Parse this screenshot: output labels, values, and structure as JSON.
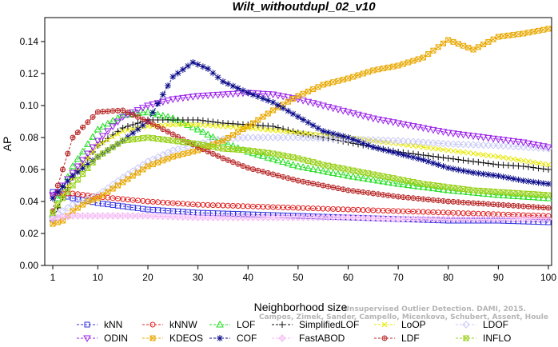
{
  "chart_data": {
    "type": "line",
    "title": "Wilt_withoutdupl_02_v10",
    "xlabel": "Neighborhood size",
    "ylabel": "AP",
    "xlim": [
      1,
      100
    ],
    "ylim": [
      0,
      0.15
    ],
    "xticks": [
      "1",
      "10",
      "20",
      "30",
      "40",
      "50",
      "60",
      "70",
      "80",
      "90",
      "100"
    ],
    "yticks": [
      "0.00",
      "0.02",
      "0.04",
      "0.06",
      "0.08",
      "0.10",
      "0.12",
      "0.14"
    ],
    "grid": false,
    "legend_position": "bottom",
    "watermark": [
      "Campos, Zimek, Sander, Campello, Micenkova, Schubert, Assent, Houle",
      "Unsupervised Outlier Detection. DAMI, 2015."
    ],
    "series": [
      {
        "name": "kNN",
        "color": "#2f2fe0",
        "marker": "square",
        "x": [
          1,
          2,
          5,
          10,
          20,
          30,
          40,
          50,
          60,
          70,
          80,
          90,
          100
        ],
        "y": [
          0.046,
          0.045,
          0.042,
          0.039,
          0.035,
          0.033,
          0.032,
          0.031,
          0.03,
          0.029,
          0.028,
          0.028,
          0.027
        ]
      },
      {
        "name": "kNNW",
        "color": "#e02020",
        "marker": "circle",
        "x": [
          1,
          2,
          5,
          10,
          20,
          30,
          40,
          50,
          60,
          70,
          80,
          90,
          100
        ],
        "y": [
          0.044,
          0.045,
          0.045,
          0.043,
          0.04,
          0.038,
          0.037,
          0.036,
          0.035,
          0.034,
          0.033,
          0.032,
          0.031
        ]
      },
      {
        "name": "LOF",
        "color": "#22dd22",
        "marker": "triangle-up",
        "x": [
          1,
          2,
          5,
          10,
          15,
          20,
          25,
          30,
          35,
          40,
          50,
          60,
          70,
          80,
          90,
          100
        ],
        "y": [
          0.032,
          0.042,
          0.062,
          0.085,
          0.094,
          0.096,
          0.092,
          0.085,
          0.077,
          0.071,
          0.062,
          0.056,
          0.051,
          0.047,
          0.044,
          0.042
        ]
      },
      {
        "name": "SimplifiedLOF",
        "color": "#111111",
        "marker": "plus",
        "x": [
          1,
          2,
          5,
          10,
          15,
          20,
          25,
          30,
          35,
          40,
          45,
          50,
          55,
          60,
          65,
          70,
          75,
          80,
          85,
          90,
          95,
          100
        ],
        "y": [
          0.028,
          0.036,
          0.055,
          0.075,
          0.086,
          0.091,
          0.091,
          0.091,
          0.089,
          0.088,
          0.087,
          0.083,
          0.08,
          0.077,
          0.074,
          0.071,
          0.069,
          0.067,
          0.065,
          0.063,
          0.062,
          0.06
        ]
      },
      {
        "name": "LoOP",
        "color": "#e8e800",
        "marker": "x",
        "x": [
          1,
          2,
          5,
          10,
          15,
          20,
          25,
          30,
          35,
          40,
          50,
          60,
          70,
          80,
          90,
          100
        ],
        "y": [
          0.031,
          0.038,
          0.055,
          0.075,
          0.084,
          0.087,
          0.088,
          0.088,
          0.087,
          0.086,
          0.083,
          0.08,
          0.076,
          0.072,
          0.068,
          0.063
        ]
      },
      {
        "name": "LDOF",
        "color": "#c8c8f8",
        "marker": "diamond",
        "x": [
          1,
          2,
          5,
          10,
          15,
          20,
          25,
          30,
          35,
          40,
          50,
          60,
          70,
          80,
          90,
          100
        ],
        "y": [
          0.03,
          0.032,
          0.038,
          0.044,
          0.055,
          0.065,
          0.072,
          0.076,
          0.079,
          0.08,
          0.08,
          0.079,
          0.078,
          0.076,
          0.075,
          0.073
        ]
      },
      {
        "name": "ODIN",
        "color": "#9a22ea",
        "marker": "triangle-down",
        "x": [
          1,
          2,
          5,
          10,
          15,
          20,
          25,
          30,
          35,
          40,
          45,
          50,
          55,
          60,
          65,
          70,
          75,
          80,
          85,
          90,
          95,
          100
        ],
        "y": [
          0.044,
          0.046,
          0.058,
          0.078,
          0.093,
          0.1,
          0.104,
          0.106,
          0.107,
          0.108,
          0.107,
          0.104,
          0.1,
          0.096,
          0.092,
          0.089,
          0.086,
          0.083,
          0.081,
          0.079,
          0.077,
          0.074
        ]
      },
      {
        "name": "KDEOS",
        "color": "#e8a800",
        "marker": "square-x",
        "x": [
          1,
          3,
          5,
          8,
          10,
          15,
          20,
          25,
          30,
          35,
          40,
          45,
          50,
          55,
          60,
          65,
          70,
          75,
          80,
          85,
          90,
          95,
          100
        ],
        "y": [
          0.026,
          0.028,
          0.034,
          0.04,
          0.042,
          0.052,
          0.062,
          0.068,
          0.072,
          0.078,
          0.087,
          0.097,
          0.106,
          0.113,
          0.117,
          0.122,
          0.125,
          0.13,
          0.141,
          0.135,
          0.143,
          0.145,
          0.148
        ]
      },
      {
        "name": "COF",
        "color": "#0a0a8a",
        "marker": "asterisk",
        "x": [
          1,
          2,
          5,
          10,
          15,
          20,
          25,
          29,
          32,
          35,
          40,
          45,
          50,
          55,
          60,
          65,
          70,
          75,
          80,
          85,
          90,
          95,
          100
        ],
        "y": [
          0.042,
          0.046,
          0.056,
          0.068,
          0.078,
          0.09,
          0.118,
          0.127,
          0.123,
          0.115,
          0.108,
          0.102,
          0.093,
          0.084,
          0.08,
          0.074,
          0.07,
          0.066,
          0.061,
          0.058,
          0.056,
          0.053,
          0.051
        ]
      },
      {
        "name": "FastABOD",
        "color": "#f5b8f5",
        "marker": "diamond-plus",
        "x": [
          1,
          2,
          5,
          10,
          20,
          30,
          40,
          50,
          60,
          70,
          80,
          90,
          100
        ],
        "y": [
          0.029,
          0.03,
          0.031,
          0.031,
          0.031,
          0.03,
          0.03,
          0.03,
          0.03,
          0.029,
          0.029,
          0.029,
          0.029
        ]
      },
      {
        "name": "LDF",
        "color": "#b82828",
        "marker": "circle-plus",
        "x": [
          1,
          2,
          5,
          10,
          15,
          20,
          25,
          30,
          35,
          40,
          50,
          60,
          70,
          80,
          90,
          100
        ],
        "y": [
          0.034,
          0.05,
          0.08,
          0.096,
          0.097,
          0.09,
          0.082,
          0.074,
          0.067,
          0.061,
          0.053,
          0.047,
          0.043,
          0.04,
          0.038,
          0.036
        ]
      },
      {
        "name": "INFLO",
        "color": "#9ad11b",
        "marker": "hourglass",
        "x": [
          1,
          2,
          5,
          10,
          15,
          20,
          25,
          30,
          35,
          40,
          45,
          50,
          55,
          60,
          65,
          70,
          75,
          80,
          85,
          90,
          95,
          100
        ],
        "y": [
          0.033,
          0.038,
          0.05,
          0.068,
          0.078,
          0.08,
          0.078,
          0.076,
          0.073,
          0.072,
          0.07,
          0.067,
          0.063,
          0.06,
          0.057,
          0.054,
          0.051,
          0.049,
          0.047,
          0.046,
          0.045,
          0.044
        ]
      }
    ]
  }
}
